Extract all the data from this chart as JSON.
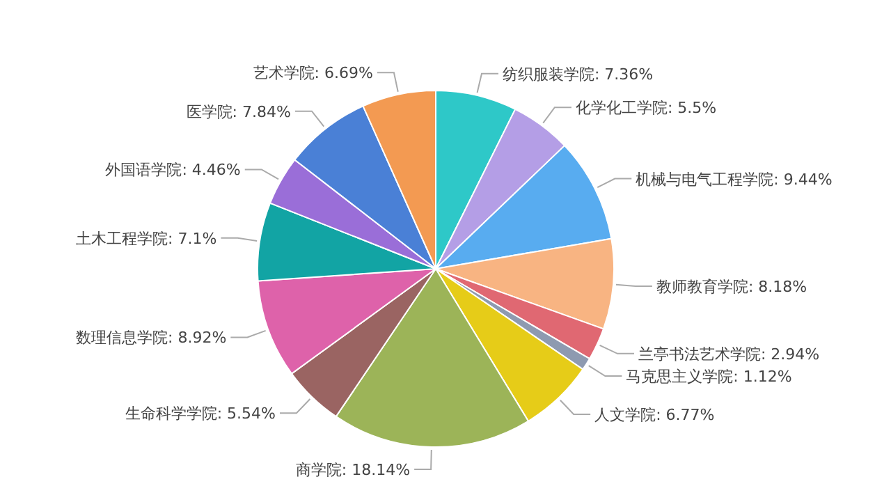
{
  "chart_data": {
    "type": "pie",
    "categories": [
      "纺织服装学院",
      "化学化工学院",
      "机械与电气工程学院",
      "教师教育学院",
      "兰亭书法艺术学院",
      "马克思主义学院",
      "人文学院",
      "商学院",
      "生命科学学院",
      "数理信息学院",
      "土木工程学院",
      "外国语学院",
      "医学院",
      "艺术学院"
    ],
    "values": [
      7.36,
      5.5,
      9.44,
      8.18,
      2.94,
      1.12,
      6.77,
      18.14,
      5.54,
      8.92,
      7.1,
      4.46,
      7.84,
      6.69
    ],
    "colors": [
      "#2ec8c8",
      "#b49ee6",
      "#58acf0",
      "#f8b482",
      "#e06872",
      "#8e9ab0",
      "#e6cc18",
      "#9cb458",
      "#9a6462",
      "#de62aa",
      "#12a4a4",
      "#9a6ed8",
      "#4a80d6",
      "#f39a52"
    ],
    "value_labels": [
      "7.36%",
      "5.5%",
      "9.44%",
      "8.18%",
      "2.94%",
      "1.12%",
      "6.77%",
      "18.14%",
      "5.54%",
      "8.92%",
      "7.1%",
      "4.46%",
      "7.84%",
      "6.69%"
    ],
    "legend": false
  }
}
